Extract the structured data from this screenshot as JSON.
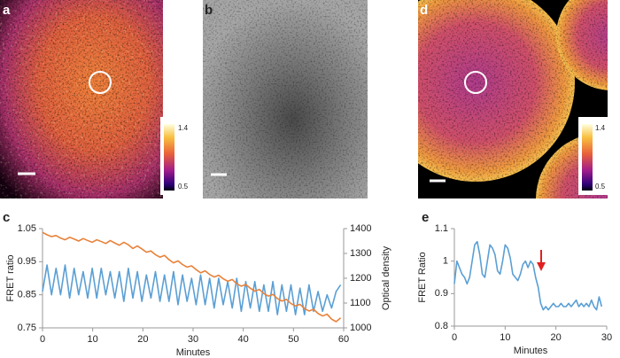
{
  "panels": {
    "labels": [
      "a",
      "b",
      "c",
      "d",
      "e"
    ]
  },
  "colorbars": [
    {
      "max": 1.4,
      "min": 0.5
    },
    {
      "max": 1.4,
      "min": 0.5
    }
  ],
  "chart_data": [
    {
      "type": "line",
      "x_label": "Minutes",
      "y_label": "FRET ratio",
      "y2_label": "Optical density",
      "xlim": [
        0,
        60
      ],
      "xticks": [
        0,
        10,
        20,
        30,
        40,
        50,
        60
      ],
      "ylim": [
        0.75,
        1.05
      ],
      "yticks": [
        0.75,
        0.85,
        0.95,
        1.05
      ],
      "y2lim": [
        1000,
        1400
      ],
      "y2ticks": [
        1000,
        1100,
        1200,
        1300,
        1400
      ],
      "x": [
        0,
        0.9,
        1.8,
        2.7,
        3.6,
        4.5,
        5.4,
        6.3,
        7.2,
        8.1,
        9,
        9.9,
        10.8,
        11.7,
        12.6,
        13.5,
        14.4,
        15.3,
        16.2,
        17.1,
        18,
        18.9,
        19.8,
        20.7,
        21.6,
        22.5,
        23.4,
        24.3,
        25.2,
        26.1,
        27,
        27.9,
        28.8,
        29.7,
        30.6,
        31.5,
        32.4,
        33.3,
        34.2,
        35.1,
        36,
        36.9,
        37.8,
        38.7,
        39.6,
        40.5,
        41.4,
        42.3,
        43.2,
        44.1,
        45,
        45.9,
        46.8,
        47.7,
        48.6,
        49.5,
        50.4,
        51.3,
        52.2,
        53.1,
        54,
        54.9,
        55.8,
        56.7,
        57.6,
        58.5,
        59.4
      ],
      "series": [
        {
          "color": "#5b9fd4",
          "values": [
            0.86,
            0.94,
            0.85,
            0.93,
            0.85,
            0.94,
            0.84,
            0.93,
            0.85,
            0.92,
            0.84,
            0.93,
            0.84,
            0.93,
            0.85,
            0.92,
            0.84,
            0.92,
            0.83,
            0.93,
            0.84,
            0.92,
            0.83,
            0.91,
            0.84,
            0.92,
            0.83,
            0.91,
            0.83,
            0.92,
            0.82,
            0.91,
            0.83,
            0.9,
            0.82,
            0.91,
            0.82,
            0.9,
            0.81,
            0.9,
            0.82,
            0.89,
            0.81,
            0.9,
            0.8,
            0.89,
            0.81,
            0.89,
            0.8,
            0.88,
            0.8,
            0.89,
            0.79,
            0.88,
            0.8,
            0.88,
            0.79,
            0.87,
            0.79,
            0.88,
            0.8,
            0.86,
            0.8,
            0.85,
            0.81,
            0.86,
            0.88
          ]
        },
        {
          "color": "#e8823a",
          "axis": "y2",
          "values": [
            1385,
            1375,
            1368,
            1372,
            1362,
            1355,
            1365,
            1358,
            1350,
            1360,
            1352,
            1345,
            1355,
            1348,
            1340,
            1352,
            1342,
            1333,
            1345,
            1335,
            1320,
            1330,
            1318,
            1305,
            1310,
            1295,
            1285,
            1292,
            1275,
            1262,
            1270,
            1255,
            1245,
            1250,
            1235,
            1222,
            1230,
            1215,
            1205,
            1212,
            1198,
            1188,
            1195,
            1178,
            1168,
            1175,
            1160,
            1148,
            1155,
            1138,
            1128,
            1135,
            1118,
            1108,
            1115,
            1098,
            1088,
            1095,
            1078,
            1068,
            1075,
            1058,
            1048,
            1055,
            1035,
            1025,
            1040
          ]
        }
      ]
    },
    {
      "type": "line",
      "x_label": "Minutes",
      "y_label": "FRET Ratio",
      "xlim": [
        0,
        30
      ],
      "xticks": [
        0,
        10,
        20,
        30
      ],
      "ylim": [
        0.8,
        1.1
      ],
      "yticks": [
        0.8,
        0.9,
        1,
        1.1
      ],
      "x": [
        0,
        0.5,
        1,
        1.5,
        2,
        2.5,
        3,
        3.5,
        4,
        4.5,
        5,
        5.5,
        6,
        6.5,
        7,
        7.5,
        8,
        8.5,
        9,
        9.5,
        10,
        10.5,
        11,
        11.5,
        12,
        12.5,
        13,
        13.5,
        14,
        14.5,
        15,
        15.5,
        16,
        16.5,
        17,
        17.5,
        18,
        18.5,
        19,
        19.5,
        20,
        20.5,
        21,
        21.5,
        22,
        22.5,
        23,
        23.5,
        24,
        24.5,
        25,
        25.5,
        26,
        26.5,
        27,
        27.5,
        28,
        28.5,
        29
      ],
      "series": [
        {
          "color": "#5b9fd4",
          "values": [
            0.93,
            1.0,
            0.98,
            0.96,
            0.95,
            0.93,
            0.95,
            1.0,
            1.05,
            1.06,
            1.02,
            0.96,
            0.95,
            1.0,
            1.05,
            1.04,
            1.02,
            0.97,
            0.96,
            1.0,
            1.05,
            1.04,
            1.01,
            0.96,
            0.95,
            0.94,
            0.96,
            0.99,
            1.0,
            0.98,
            1.0,
            0.99,
            0.95,
            0.92,
            0.87,
            0.85,
            0.86,
            0.85,
            0.86,
            0.87,
            0.86,
            0.86,
            0.87,
            0.86,
            0.86,
            0.87,
            0.86,
            0.87,
            0.88,
            0.86,
            0.87,
            0.86,
            0.87,
            0.86,
            0.88,
            0.86,
            0.85,
            0.89,
            0.86
          ]
        }
      ]
    }
  ]
}
